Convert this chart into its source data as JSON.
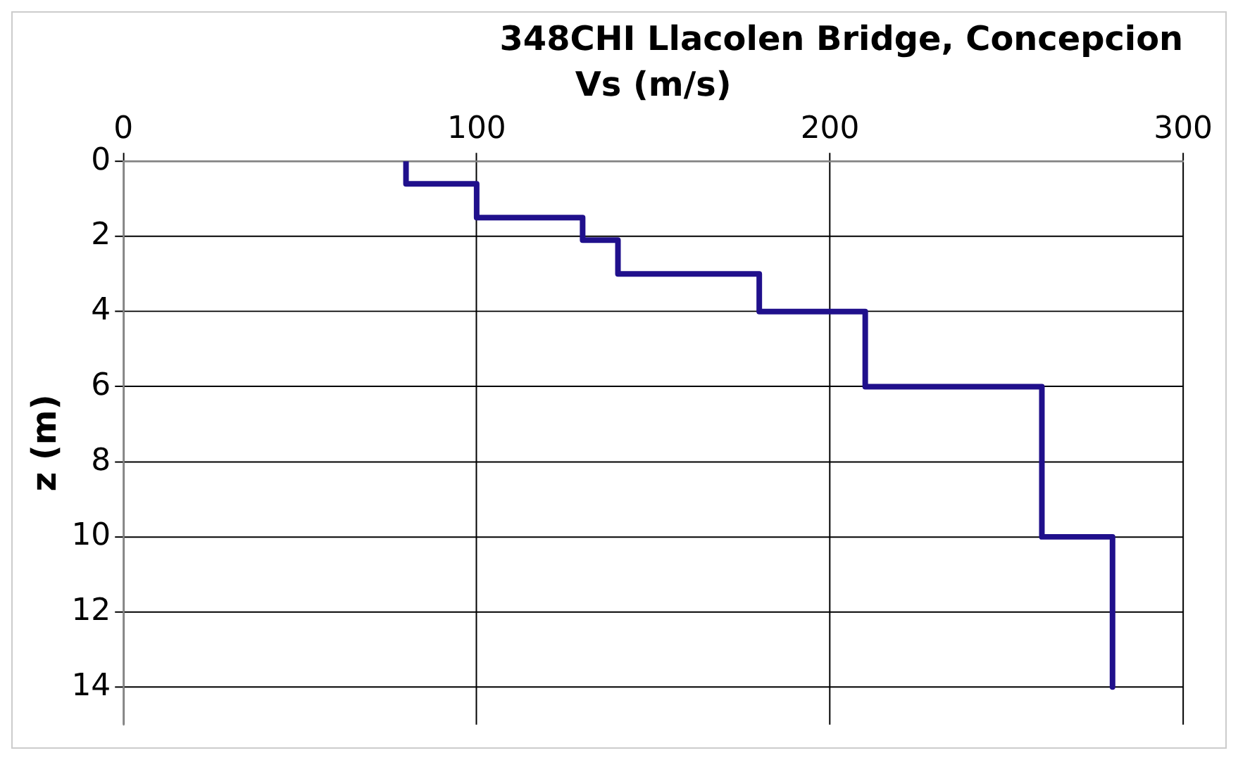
{
  "chart_data": {
    "type": "line",
    "title": "348CHI Llacolen Bridge, Concepcion",
    "xlabel": "Vs (m/s)",
    "ylabel": "z (m)",
    "x": [
      80,
      80,
      100,
      100,
      130,
      130,
      140,
      140,
      180,
      180,
      210,
      210,
      260,
      260,
      280,
      280
    ],
    "series": [
      {
        "color": "#20108c",
        "values": [
          0,
          0.6,
          0.6,
          1.5,
          1.5,
          2.1,
          2.1,
          3,
          3,
          4,
          4,
          6,
          6,
          10,
          10,
          14
        ]
      }
    ],
    "xlim": [
      0,
      300
    ],
    "xticks": [
      0,
      100,
      200,
      300
    ],
    "ylim": [
      15,
      0
    ],
    "yticks": [
      0,
      2,
      4,
      6,
      8,
      10,
      12,
      14
    ],
    "grid": true,
    "legend": false,
    "marker": "none",
    "line_style": "solid"
  }
}
